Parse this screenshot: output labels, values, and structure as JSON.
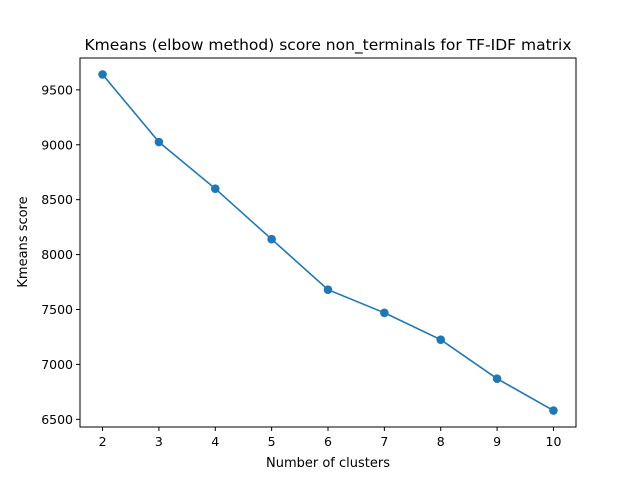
{
  "chart_data": {
    "type": "line",
    "title": "Kmeans (elbow method) score non_terminals for TF-IDF matrix",
    "xlabel": "Number of clusters",
    "ylabel": "Kmeans score",
    "x": [
      2,
      3,
      4,
      5,
      6,
      7,
      8,
      9,
      10
    ],
    "series": [
      {
        "values": [
          9640,
          9025,
          8600,
          8140,
          7680,
          7470,
          7225,
          6870,
          6580
        ],
        "color": "#1f77b4",
        "marker": "circle"
      }
    ],
    "xlim": [
      1.6,
      10.4
    ],
    "ylim": [
      6430,
      9790
    ],
    "xticks": [
      2,
      3,
      4,
      5,
      6,
      7,
      8,
      9,
      10
    ],
    "yticks": [
      6500,
      7000,
      7500,
      8000,
      8500,
      9000,
      9500
    ],
    "grid": false,
    "legend": "none"
  }
}
